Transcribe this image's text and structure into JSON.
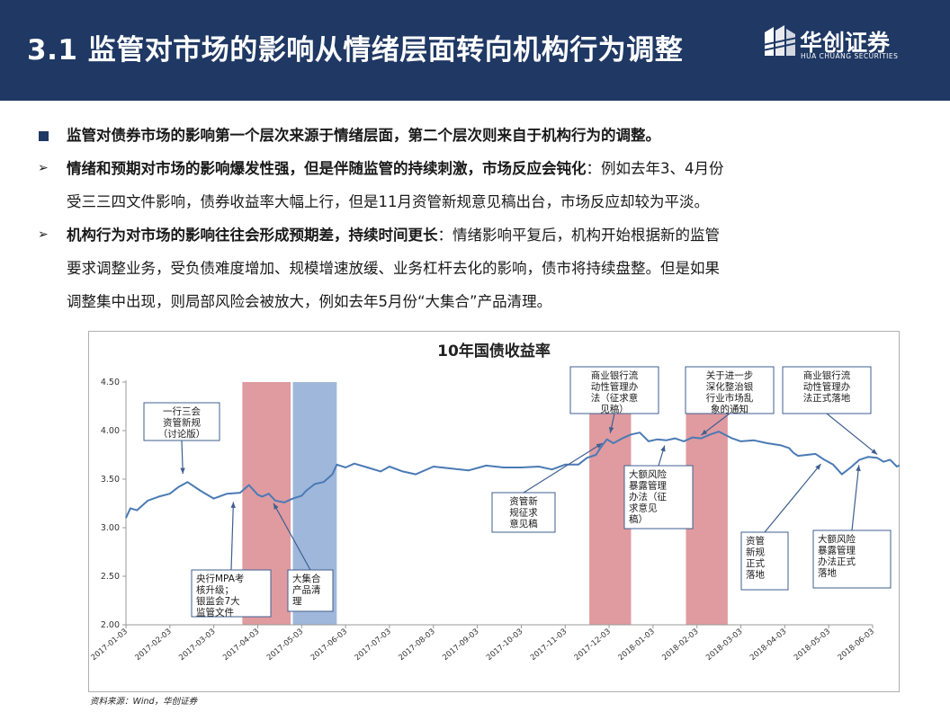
{
  "header": {
    "title": "3.1 监管对市场的影响从情绪层面转向机构行为调整",
    "logo_text": "华创证券",
    "logo_sub": "HUA CHUANG SECURITIES"
  },
  "bullets": [
    {
      "bold": "监管对债券市场的影响第一个层次来源于情绪层面，第二个层次则来自于机构行为的调整。",
      "lines": []
    },
    {
      "bold": "情绪和预期对市场的影响爆发性强，但是伴随监管的持续刺激，市场反应会钝化",
      "rest": "：例如去年3、4月份",
      "lines": [
        "受三三四文件影响，债券收益率大幅上行，但是11月资管新规意见稿出台，市场反应却较为平淡。"
      ]
    },
    {
      "bold": "机构行为对市场的影响往往会形成预期差，持续时间更长",
      "rest": "：情绪影响平复后，机构开始根据新的监管",
      "lines": [
        "要求调整业务，受负债难度增加、规模增速放缓、业务杠杆去化的影响，债市将持续盘整。但是如果",
        "调整集中出现，则局部风险会被放大，例如去年5月份“大集合”产品清理。"
      ]
    }
  ],
  "source": "资料来源：Wind，华创证券",
  "colors": {
    "header": "#1f3864",
    "line": "#4a7ab5",
    "band_red": "#d98a8f",
    "band_blue": "#8eaad4"
  },
  "chart_data": {
    "type": "line",
    "title": "10年国债收益率",
    "ylim": [
      2.0,
      4.5
    ],
    "yticks": [
      "2.00",
      "2.50",
      "3.00",
      "3.50",
      "4.00",
      "4.50"
    ],
    "xticks": [
      "2017-01-03",
      "2017-02-03",
      "2017-03-03",
      "2017-04-03",
      "2017-05-03",
      "2017-06-03",
      "2017-07-03",
      "2017-08-03",
      "2017-09-03",
      "2017-10-03",
      "2017-11-03",
      "2017-12-03",
      "2018-01-03",
      "2018-02-03",
      "2018-03-03",
      "2018-04-03",
      "2018-05-03",
      "2018-06-03"
    ],
    "x": [
      0,
      0.1,
      0.25,
      0.5,
      0.75,
      1.0,
      1.2,
      1.4,
      1.7,
      2.0,
      2.3,
      2.6,
      2.8,
      3.0,
      3.1,
      3.25,
      3.4,
      3.6,
      3.8,
      4.0,
      4.1,
      4.3,
      4.5,
      4.7,
      4.8,
      5.0,
      5.2,
      5.5,
      5.8,
      6.0,
      6.3,
      6.6,
      7.0,
      7.4,
      7.8,
      8.2,
      8.6,
      9.0,
      9.4,
      9.7,
      10.0,
      10.3,
      10.5,
      10.7,
      10.8,
      10.95,
      11.1,
      11.3,
      11.5,
      11.7,
      11.9,
      12.1,
      12.3,
      12.5,
      12.7,
      12.9,
      13.1,
      13.3,
      13.5,
      13.8,
      14.0,
      14.3,
      14.6,
      14.9,
      15.1,
      15.2,
      15.3,
      15.5,
      15.7,
      15.9,
      16.1,
      16.3,
      16.5,
      16.7,
      16.9,
      17.1,
      17.25,
      17.4,
      17.55,
      17.7,
      17.85,
      18.0
    ],
    "values": [
      3.1,
      3.2,
      3.18,
      3.28,
      3.32,
      3.35,
      3.42,
      3.47,
      3.38,
      3.3,
      3.35,
      3.36,
      3.44,
      3.34,
      3.32,
      3.35,
      3.28,
      3.26,
      3.3,
      3.33,
      3.38,
      3.45,
      3.47,
      3.55,
      3.65,
      3.62,
      3.66,
      3.62,
      3.58,
      3.63,
      3.58,
      3.55,
      3.63,
      3.61,
      3.59,
      3.64,
      3.62,
      3.62,
      3.63,
      3.6,
      3.65,
      3.65,
      3.72,
      3.75,
      3.82,
      3.91,
      3.87,
      3.92,
      3.96,
      3.98,
      3.89,
      3.91,
      3.9,
      3.92,
      3.89,
      3.93,
      3.92,
      3.96,
      3.99,
      3.92,
      3.89,
      3.9,
      3.87,
      3.85,
      3.82,
      3.77,
      3.74,
      3.75,
      3.76,
      3.7,
      3.65,
      3.55,
      3.62,
      3.7,
      3.73,
      3.72,
      3.68,
      3.7,
      3.63,
      3.66,
      3.65,
      3.66
    ],
    "bands": [
      {
        "from": 2.65,
        "to": 3.75,
        "color": "red"
      },
      {
        "from": 3.8,
        "to": 4.8,
        "color": "blue"
      },
      {
        "from": 10.55,
        "to": 11.5,
        "color": "red"
      },
      {
        "from": 12.75,
        "to": 13.7,
        "color": "red"
      }
    ],
    "annotations": [
      {
        "lines": [
          "一行三会",
          "资管新规",
          "（讨论版）"
        ]
      },
      {
        "lines": [
          "央行MPA考",
          "核升级；",
          "银监会7大",
          "监管文件"
        ]
      },
      {
        "lines": [
          "大集合",
          "产品清",
          "理"
        ]
      },
      {
        "lines": [
          "资管新",
          "规征求",
          "意见稿"
        ]
      },
      {
        "lines": [
          "商业银行流",
          "动性管理办",
          "法（征求意",
          "见稿）"
        ]
      },
      {
        "lines": [
          "大额风险",
          "暴露管理",
          "办法（征",
          "求意见",
          "稿）"
        ]
      },
      {
        "lines": [
          "关于进一步",
          "深化整治银",
          "行业市场乱",
          "象的通知"
        ]
      },
      {
        "lines": [
          "资管",
          "新规",
          "正式",
          "落地"
        ]
      },
      {
        "lines": [
          "商业银行流",
          "动性管理办",
          "法正式落地"
        ]
      },
      {
        "lines": [
          "大额风险",
          "暴露管理",
          "办法正式",
          "落地"
        ]
      }
    ]
  }
}
